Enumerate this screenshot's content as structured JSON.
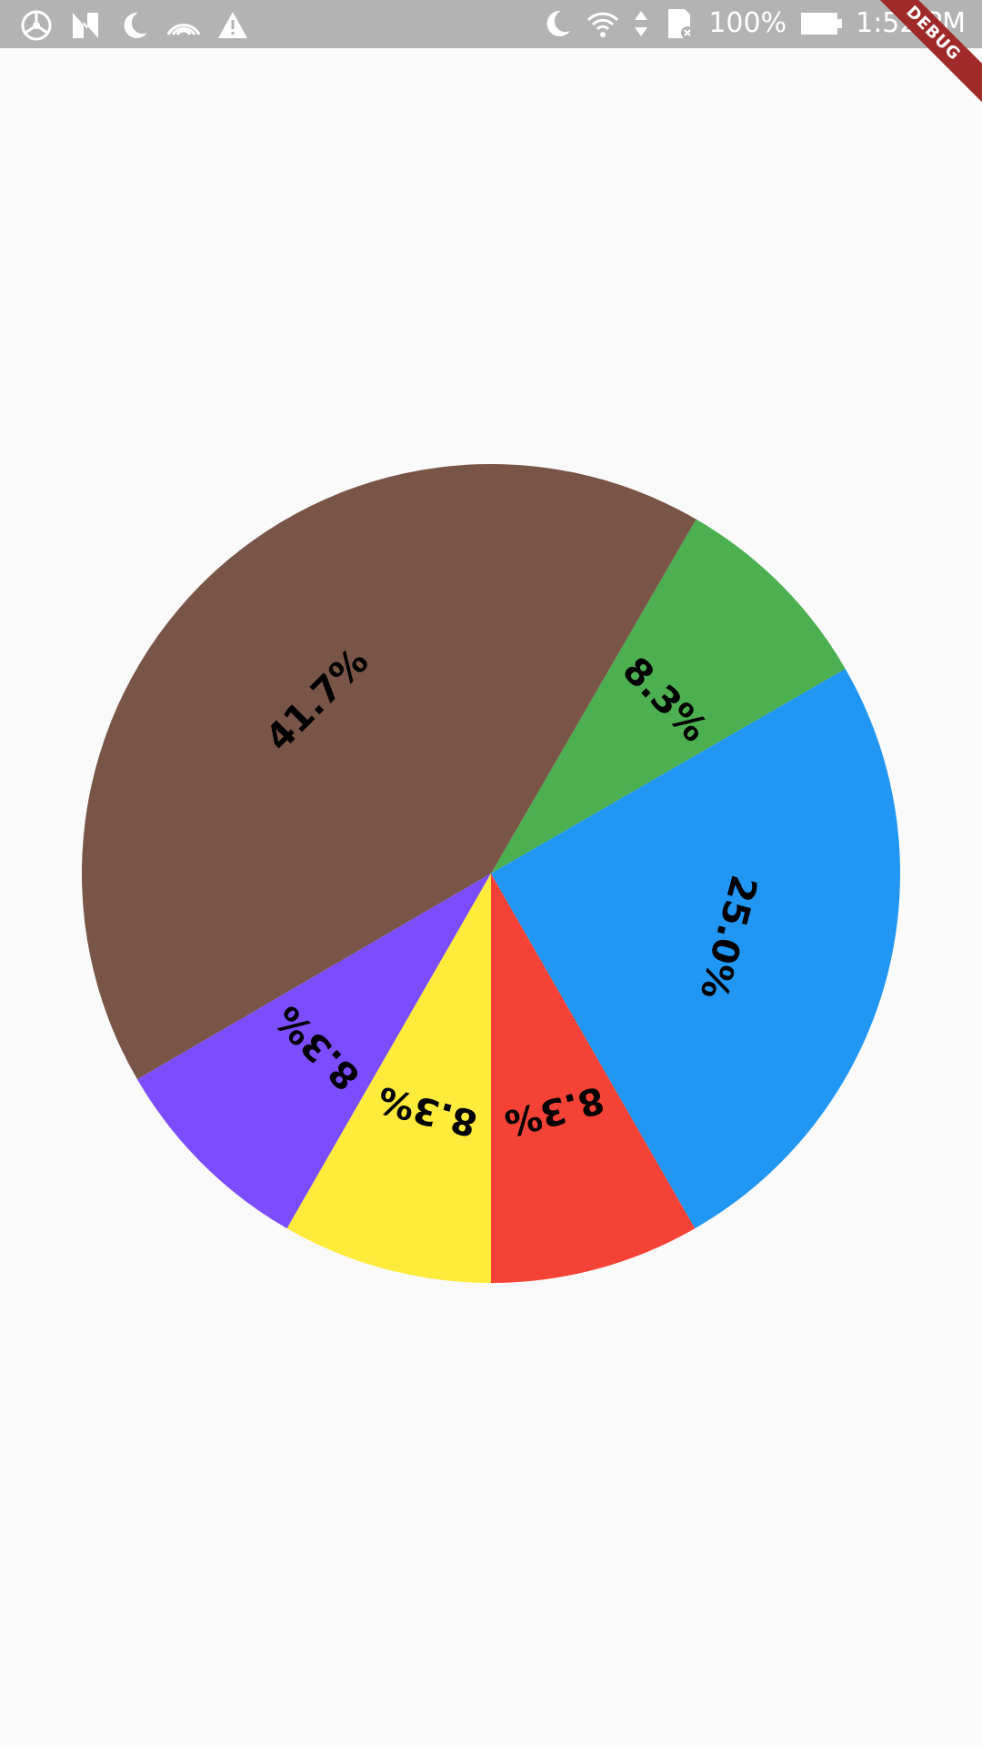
{
  "status_bar": {
    "battery": "100%",
    "time": "1:52 PM",
    "left_icons": [
      "steering-wheel-icon",
      "n-icon",
      "moon-icon",
      "hotspot-icon",
      "warning-icon"
    ],
    "right_icons": [
      "moon-icon",
      "wifi-icon",
      "data-arrows-icon",
      "sd-card-icon",
      "battery-icon"
    ]
  },
  "debug_banner": "DEBUG",
  "chart_data": {
    "type": "pie",
    "start_angle_deg": -30,
    "direction": "counterclockwise",
    "slices": [
      {
        "value": 8.3,
        "label": "8.3%",
        "color": "#4caf50"
      },
      {
        "value": 41.7,
        "label": "41.7%",
        "color": "#795548"
      },
      {
        "value": 8.3,
        "label": "8.3%",
        "color": "#7c4dff"
      },
      {
        "value": 8.3,
        "label": "8.3%",
        "color": "#ffeb3b"
      },
      {
        "value": 8.3,
        "label": "8.3%",
        "color": "#f44336"
      },
      {
        "value": 25.0,
        "label": "25.0%",
        "color": "#2196f3"
      }
    ]
  }
}
